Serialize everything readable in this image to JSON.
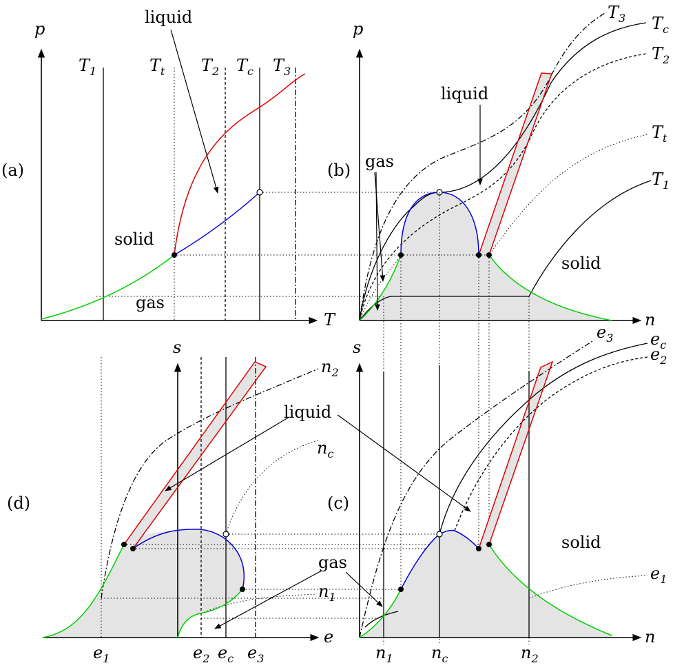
{
  "panels": {
    "a": {
      "tag": "(a)",
      "y_axis": "p",
      "x_axis": "T",
      "isotherms": [
        {
          "main": "T",
          "sub": "1"
        },
        {
          "main": "T",
          "sub": "t"
        },
        {
          "main": "T",
          "sub": "2"
        },
        {
          "main": "T",
          "sub": "c"
        },
        {
          "main": "T",
          "sub": "3"
        }
      ],
      "phases": {
        "solid": "solid",
        "gas": "gas",
        "liquid": "liquid"
      }
    },
    "b": {
      "tag": "(b)",
      "y_axis": "p",
      "x_axis": "n",
      "isotherms": [
        {
          "main": "T",
          "sub": "3"
        },
        {
          "main": "T",
          "sub": "c"
        },
        {
          "main": "T",
          "sub": "2"
        },
        {
          "main": "T",
          "sub": "t"
        },
        {
          "main": "T",
          "sub": "1"
        }
      ],
      "phases": {
        "liquid": "liquid",
        "gas": "gas",
        "solid": "solid"
      }
    },
    "c": {
      "tag": "(c)",
      "y_axis": "s",
      "x_axis": "n",
      "isentropes": [
        {
          "main": "e",
          "sub": "3"
        },
        {
          "main": "e",
          "sub": "c"
        },
        {
          "main": "e",
          "sub": "2"
        },
        {
          "main": "e",
          "sub": "1"
        }
      ],
      "x_ticks": [
        {
          "main": "n",
          "sub": "1"
        },
        {
          "main": "n",
          "sub": "c"
        },
        {
          "main": "n",
          "sub": "2"
        }
      ],
      "phases": {
        "solid": "solid"
      }
    },
    "d": {
      "tag": "(d)",
      "y_axis": "s",
      "x_axis": "e",
      "curves": [
        {
          "main": "n",
          "sub": "2"
        },
        {
          "main": "n",
          "sub": "c"
        },
        {
          "main": "n",
          "sub": "1"
        }
      ],
      "x_ticks": [
        {
          "main": "e",
          "sub": "1"
        },
        {
          "main": "e",
          "sub": "2"
        },
        {
          "main": "e",
          "sub": "c"
        },
        {
          "main": "e",
          "sub": "3"
        }
      ]
    },
    "shared": {
      "liquid": "liquid",
      "gas": "gas"
    }
  },
  "colors": {
    "melting_curve": "#e00000",
    "vaporization_curve": "#0000e0",
    "sublimation_curve": "#00d000",
    "coexistence_fill": "#e4e4e4"
  }
}
